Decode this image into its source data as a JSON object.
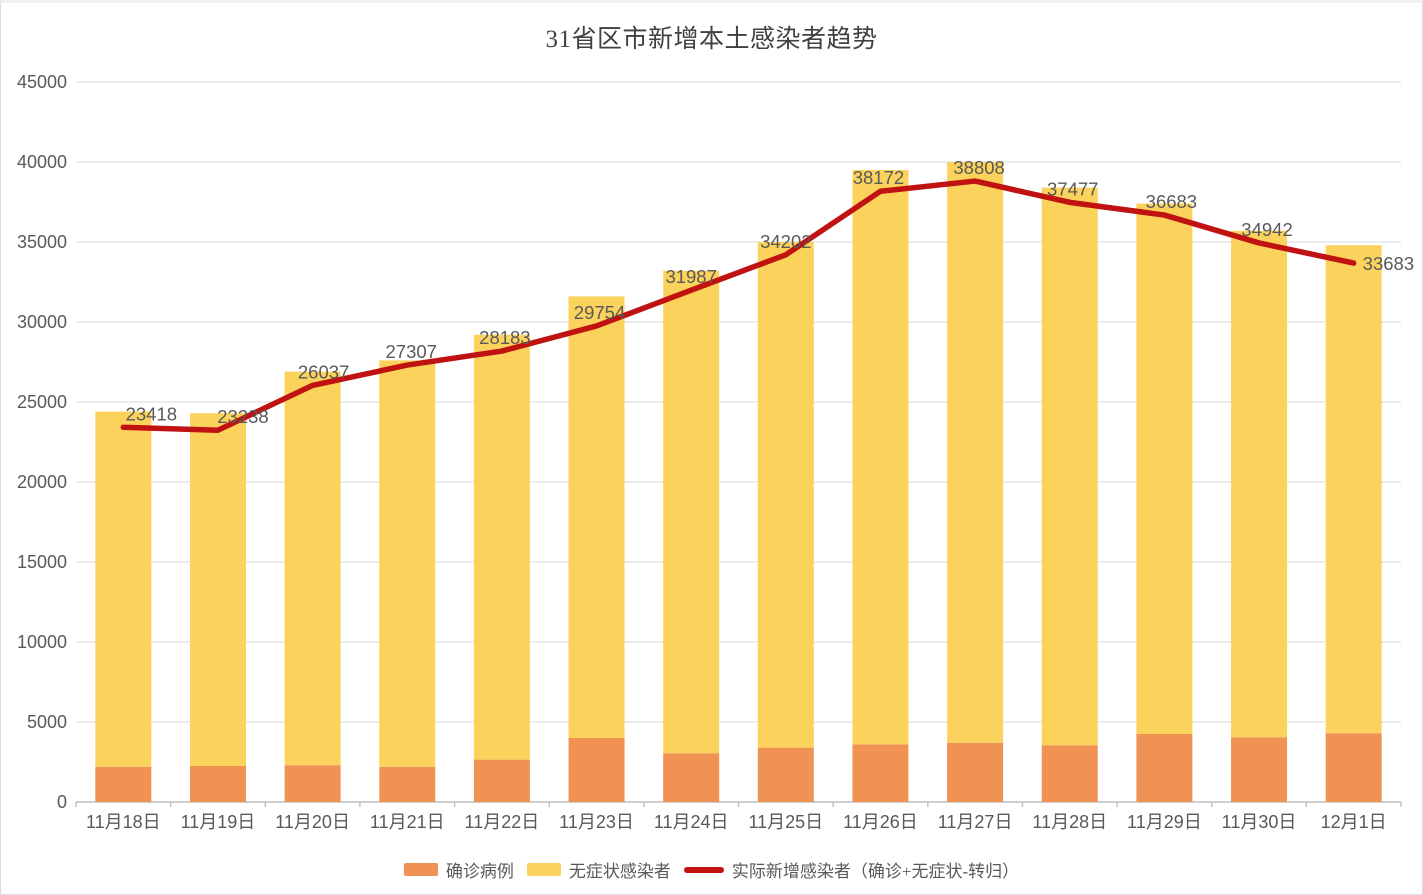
{
  "chart_data": {
    "type": "bar",
    "variant": "stacked-bars-with-line-overlay",
    "title": "31省区市新增本土感染者趋势",
    "categories": [
      "11月18日",
      "11月19日",
      "11月20日",
      "11月21日",
      "11月22日",
      "11月23日",
      "11月24日",
      "11月25日",
      "11月26日",
      "11月27日",
      "11月28日",
      "11月29日",
      "11月30日",
      "12月1日"
    ],
    "series": [
      {
        "key": "confirmed",
        "name": "确诊病例",
        "type": "bar",
        "stack": true,
        "color": "#EF9253",
        "values": [
          2200,
          2250,
          2300,
          2200,
          2650,
          4000,
          3050,
          3400,
          3600,
          3700,
          3550,
          4250,
          4050,
          4300
        ]
      },
      {
        "key": "asymptomatic",
        "name": "无症状感染者",
        "type": "bar",
        "stack": true,
        "color": "#FBD35C",
        "values": [
          22200,
          22050,
          24600,
          25400,
          26550,
          27600,
          30150,
          31600,
          35900,
          36300,
          34850,
          33150,
          31650,
          30500
        ]
      },
      {
        "key": "actual_new",
        "name": "实际新增感染者（确诊+无症状-转归）",
        "type": "line",
        "color": "#C11212",
        "point_labels": true,
        "values": [
          23418,
          23238,
          26037,
          27307,
          28183,
          29754,
          31987,
          34202,
          38172,
          38808,
          37477,
          36683,
          34942,
          33683
        ]
      }
    ],
    "ylim": [
      0,
      45000
    ],
    "ytick_step": 5000,
    "yticks": [
      0,
      5000,
      10000,
      15000,
      20000,
      25000,
      30000,
      35000,
      40000,
      45000
    ],
    "grid": "horizontal",
    "legend_position": "bottom",
    "colors": {
      "grid_line": "#D9D9D9",
      "axis_line": "#BFBFBF",
      "tick_label": "#595959",
      "data_label": "#595959",
      "title_text": "#404040"
    }
  }
}
